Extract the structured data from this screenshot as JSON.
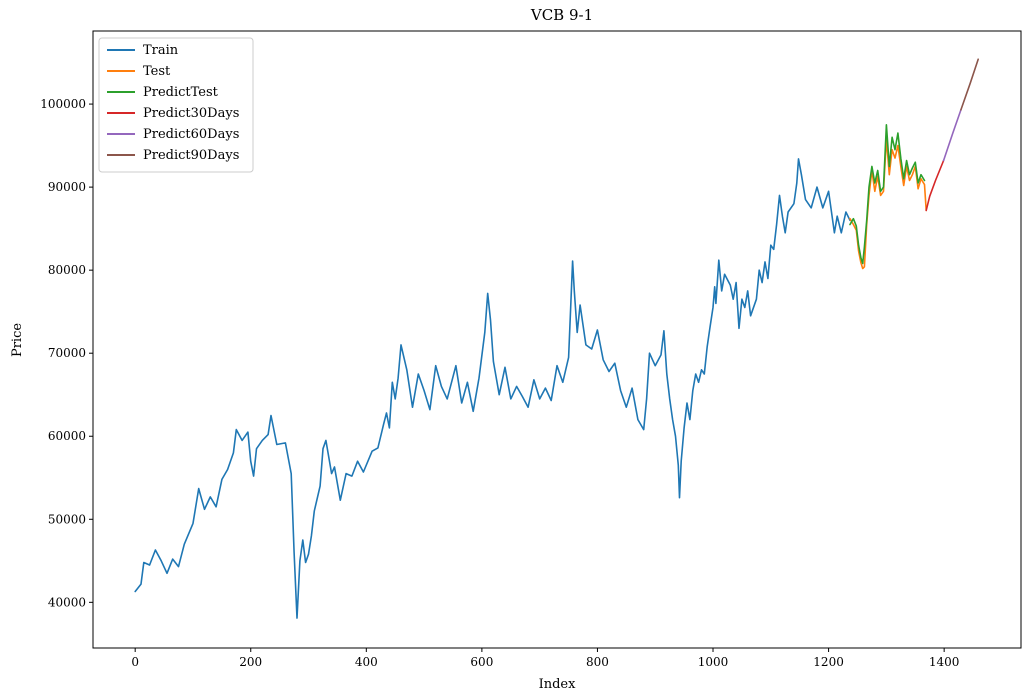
{
  "chart_data": {
    "type": "line",
    "title": "VCB 9-1",
    "xlabel": "Index",
    "ylabel": "Price",
    "xlim": [
      -73,
      1533
    ],
    "ylim": [
      34500,
      108800
    ],
    "xticks": [
      0,
      200,
      400,
      600,
      800,
      1000,
      1200,
      1400
    ],
    "xtick_labels": [
      "0",
      "200",
      "400",
      "600",
      "800",
      "1000",
      "1200",
      "1400"
    ],
    "yticks": [
      40000,
      50000,
      60000,
      70000,
      80000,
      90000,
      100000
    ],
    "ytick_labels": [
      "40000",
      "50000",
      "60000",
      "70000",
      "80000",
      "90000",
      "100000"
    ],
    "grid": false,
    "legend_position": "top-left",
    "series": [
      {
        "name": "Train",
        "color": "#1f77b4",
        "points": [
          [
            0,
            41300
          ],
          [
            10,
            42200
          ],
          [
            15,
            44800
          ],
          [
            25,
            44500
          ],
          [
            35,
            46300
          ],
          [
            45,
            45000
          ],
          [
            55,
            43500
          ],
          [
            65,
            45200
          ],
          [
            75,
            44300
          ],
          [
            85,
            47000
          ],
          [
            100,
            49500
          ],
          [
            110,
            53700
          ],
          [
            120,
            51200
          ],
          [
            130,
            52700
          ],
          [
            140,
            51500
          ],
          [
            150,
            54800
          ],
          [
            160,
            56000
          ],
          [
            170,
            58000
          ],
          [
            175,
            60800
          ],
          [
            185,
            59500
          ],
          [
            195,
            60500
          ],
          [
            200,
            57000
          ],
          [
            205,
            55200
          ],
          [
            210,
            58500
          ],
          [
            220,
            59500
          ],
          [
            230,
            60200
          ],
          [
            235,
            62500
          ],
          [
            245,
            59000
          ],
          [
            260,
            59200
          ],
          [
            270,
            55500
          ],
          [
            275,
            46000
          ],
          [
            280,
            38100
          ],
          [
            285,
            45000
          ],
          [
            290,
            47500
          ],
          [
            295,
            44800
          ],
          [
            300,
            45800
          ],
          [
            305,
            48000
          ],
          [
            310,
            51000
          ],
          [
            320,
            54000
          ],
          [
            325,
            58500
          ],
          [
            330,
            59500
          ],
          [
            340,
            55500
          ],
          [
            345,
            56300
          ],
          [
            355,
            52300
          ],
          [
            365,
            55500
          ],
          [
            375,
            55200
          ],
          [
            385,
            57000
          ],
          [
            395,
            55700
          ],
          [
            410,
            58200
          ],
          [
            420,
            58600
          ],
          [
            430,
            61500
          ],
          [
            435,
            62800
          ],
          [
            440,
            61000
          ],
          [
            445,
            66500
          ],
          [
            450,
            64500
          ],
          [
            455,
            67000
          ],
          [
            460,
            71000
          ],
          [
            470,
            68000
          ],
          [
            480,
            63500
          ],
          [
            490,
            67500
          ],
          [
            500,
            65500
          ],
          [
            510,
            63200
          ],
          [
            520,
            68500
          ],
          [
            530,
            66000
          ],
          [
            540,
            64500
          ],
          [
            555,
            68500
          ],
          [
            565,
            64000
          ],
          [
            575,
            66500
          ],
          [
            585,
            63000
          ],
          [
            595,
            67000
          ],
          [
            605,
            72500
          ],
          [
            610,
            77200
          ],
          [
            615,
            74000
          ],
          [
            620,
            69000
          ],
          [
            630,
            65000
          ],
          [
            640,
            68300
          ],
          [
            650,
            64500
          ],
          [
            660,
            66000
          ],
          [
            670,
            64800
          ],
          [
            680,
            63500
          ],
          [
            690,
            66800
          ],
          [
            700,
            64500
          ],
          [
            710,
            65800
          ],
          [
            720,
            64300
          ],
          [
            730,
            68500
          ],
          [
            740,
            66500
          ],
          [
            750,
            69500
          ],
          [
            757,
            81100
          ],
          [
            760,
            77500
          ],
          [
            765,
            72500
          ],
          [
            770,
            75800
          ],
          [
            780,
            71000
          ],
          [
            790,
            70500
          ],
          [
            800,
            72800
          ],
          [
            810,
            69200
          ],
          [
            820,
            67800
          ],
          [
            830,
            68800
          ],
          [
            840,
            65500
          ],
          [
            850,
            63500
          ],
          [
            860,
            65800
          ],
          [
            870,
            62000
          ],
          [
            880,
            60800
          ],
          [
            885,
            64500
          ],
          [
            890,
            70000
          ],
          [
            900,
            68500
          ],
          [
            910,
            69800
          ],
          [
            915,
            72700
          ],
          [
            920,
            67500
          ],
          [
            925,
            64500
          ],
          [
            930,
            62000
          ],
          [
            935,
            60000
          ],
          [
            940,
            56500
          ],
          [
            942,
            52600
          ],
          [
            945,
            57000
          ],
          [
            950,
            61000
          ],
          [
            955,
            64000
          ],
          [
            960,
            62000
          ],
          [
            965,
            65500
          ],
          [
            970,
            67500
          ],
          [
            975,
            66500
          ],
          [
            980,
            68000
          ],
          [
            985,
            67500
          ],
          [
            990,
            70800
          ],
          [
            995,
            73200
          ],
          [
            1000,
            75500
          ],
          [
            1003,
            78000
          ],
          [
            1005,
            76000
          ],
          [
            1010,
            81200
          ],
          [
            1015,
            77500
          ],
          [
            1020,
            79500
          ],
          [
            1030,
            78200
          ],
          [
            1035,
            76500
          ],
          [
            1040,
            78500
          ],
          [
            1045,
            73000
          ],
          [
            1050,
            76500
          ],
          [
            1055,
            75500
          ],
          [
            1060,
            77500
          ],
          [
            1065,
            74500
          ],
          [
            1075,
            76500
          ],
          [
            1080,
            80000
          ],
          [
            1085,
            78500
          ],
          [
            1090,
            81000
          ],
          [
            1095,
            79000
          ],
          [
            1100,
            83000
          ],
          [
            1105,
            82500
          ],
          [
            1110,
            85500
          ],
          [
            1115,
            89000
          ],
          [
            1120,
            86500
          ],
          [
            1125,
            84500
          ],
          [
            1130,
            87000
          ],
          [
            1140,
            88000
          ],
          [
            1145,
            90500
          ],
          [
            1148,
            93400
          ],
          [
            1153,
            91500
          ],
          [
            1160,
            88500
          ],
          [
            1170,
            87500
          ],
          [
            1180,
            90000
          ],
          [
            1190,
            87500
          ],
          [
            1200,
            89500
          ],
          [
            1210,
            84500
          ],
          [
            1215,
            86500
          ],
          [
            1222,
            84500
          ],
          [
            1230,
            87000
          ],
          [
            1237,
            86000
          ]
        ]
      },
      {
        "name": "Test",
        "color": "#ff7f0e",
        "points": [
          [
            1237,
            86200
          ],
          [
            1243,
            85500
          ],
          [
            1248,
            84800
          ],
          [
            1252,
            82300
          ],
          [
            1256,
            80900
          ],
          [
            1259,
            80200
          ],
          [
            1262,
            80400
          ],
          [
            1266,
            85500
          ],
          [
            1270,
            89000
          ],
          [
            1275,
            92000
          ],
          [
            1280,
            89500
          ],
          [
            1285,
            91300
          ],
          [
            1290,
            89000
          ],
          [
            1295,
            89500
          ],
          [
            1300,
            95800
          ],
          [
            1305,
            91500
          ],
          [
            1310,
            94500
          ],
          [
            1315,
            93500
          ],
          [
            1320,
            95000
          ],
          [
            1325,
            92500
          ],
          [
            1330,
            90200
          ],
          [
            1335,
            92500
          ],
          [
            1340,
            90800
          ],
          [
            1345,
            91500
          ],
          [
            1350,
            92500
          ],
          [
            1355,
            89800
          ],
          [
            1360,
            91000
          ],
          [
            1366,
            90300
          ],
          [
            1369,
            87200
          ]
        ]
      },
      {
        "name": "PredictTest",
        "color": "#2ca02c",
        "points": [
          [
            1237,
            85500
          ],
          [
            1243,
            86200
          ],
          [
            1248,
            85300
          ],
          [
            1252,
            83000
          ],
          [
            1256,
            81500
          ],
          [
            1259,
            80800
          ],
          [
            1262,
            82800
          ],
          [
            1266,
            86000
          ],
          [
            1270,
            90000
          ],
          [
            1275,
            92500
          ],
          [
            1280,
            90500
          ],
          [
            1285,
            92000
          ],
          [
            1290,
            89500
          ],
          [
            1295,
            90000
          ],
          [
            1300,
            97500
          ],
          [
            1305,
            92500
          ],
          [
            1310,
            96000
          ],
          [
            1315,
            94500
          ],
          [
            1320,
            96500
          ],
          [
            1325,
            93500
          ],
          [
            1330,
            91000
          ],
          [
            1335,
            93200
          ],
          [
            1340,
            91500
          ],
          [
            1345,
            92300
          ],
          [
            1350,
            93000
          ],
          [
            1355,
            90500
          ],
          [
            1360,
            91500
          ],
          [
            1366,
            90800
          ]
        ]
      },
      {
        "name": "Predict30Days",
        "color": "#d62728",
        "points": [
          [
            1369,
            87200
          ],
          [
            1375,
            88900
          ],
          [
            1385,
            90800
          ],
          [
            1399,
            93200
          ]
        ]
      },
      {
        "name": "Predict60Days",
        "color": "#9467bd",
        "points": [
          [
            1399,
            93200
          ],
          [
            1415,
            96500
          ],
          [
            1429,
            99300
          ]
        ]
      },
      {
        "name": "Predict90Days",
        "color": "#8c564b",
        "points": [
          [
            1429,
            99300
          ],
          [
            1445,
            102500
          ],
          [
            1459,
            105400
          ]
        ]
      }
    ]
  }
}
